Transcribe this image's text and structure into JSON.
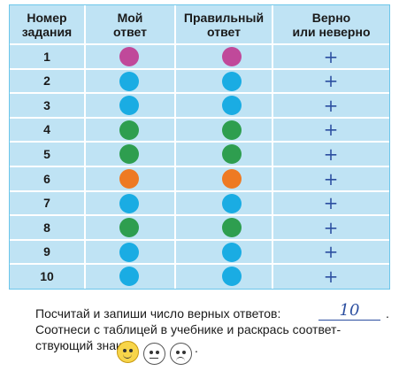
{
  "table": {
    "headers": [
      "Номер\nзадания",
      "Мой\nответ",
      "Правильный\nответ",
      "Верно\nили неверно"
    ],
    "rows": [
      {
        "n": "1",
        "mine": "#c0499a",
        "right": "#c0499a",
        "mark": "+"
      },
      {
        "n": "2",
        "mine": "#1aace3",
        "right": "#1aace3",
        "mark": "+"
      },
      {
        "n": "3",
        "mine": "#1aace3",
        "right": "#1aace3",
        "mark": "+"
      },
      {
        "n": "4",
        "mine": "#2e9e4f",
        "right": "#2e9e4f",
        "mark": "+"
      },
      {
        "n": "5",
        "mine": "#2e9e4f",
        "right": "#2e9e4f",
        "mark": "+"
      },
      {
        "n": "6",
        "mine": "#ee7a23",
        "right": "#ee7a23",
        "mark": "+"
      },
      {
        "n": "7",
        "mine": "#1aace3",
        "right": "#1aace3",
        "mark": "+"
      },
      {
        "n": "8",
        "mine": "#2e9e4f",
        "right": "#2e9e4f",
        "mark": "+"
      },
      {
        "n": "9",
        "mine": "#1aace3",
        "right": "#1aace3",
        "mark": "+"
      },
      {
        "n": "10",
        "mine": "#1aace3",
        "right": "#1aace3",
        "mark": "+"
      }
    ]
  },
  "instructions": {
    "line1": "Посчитай и запиши число верных ответов:",
    "answer": "10",
    "line1_end": ".",
    "line2": "Соотнеси с таблицей в учебнике и раскрась соответ-",
    "line3": "ствующий знак:",
    "line3_end": "."
  },
  "faces": [
    {
      "mood": "happy",
      "color": "#f7d54a",
      "colored": true
    },
    {
      "mood": "neutral",
      "color": "#ffffff",
      "colored": false
    },
    {
      "mood": "sad",
      "color": "#ffffff",
      "colored": false
    }
  ],
  "colors": {
    "grid_bg": "#bfe3f4",
    "grid_line": "#ffffff",
    "pen": "#2c4fa0"
  }
}
